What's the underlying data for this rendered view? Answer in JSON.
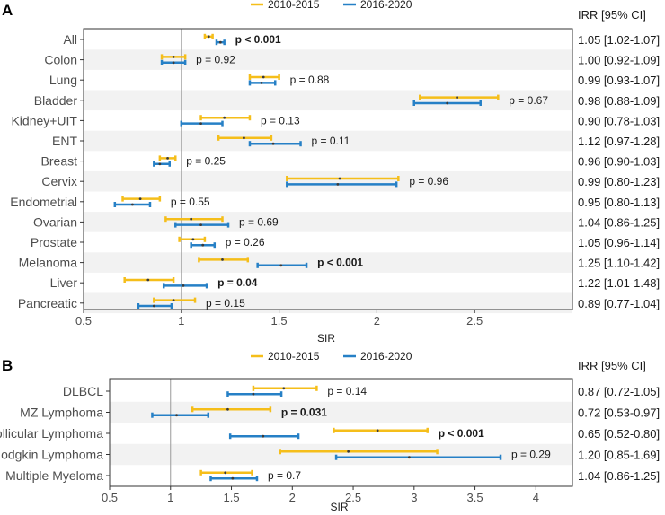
{
  "chart_data": [
    {
      "type": "forest",
      "panel_label": "A",
      "xlabel": "SIR",
      "xlim": [
        0.5,
        3.0
      ],
      "xticks": [
        0.5,
        1.0,
        1.5,
        2.0,
        2.5
      ],
      "reference_line": 1.0,
      "irr_header": "IRR [95% CI]",
      "legend": [
        {
          "name": "2010-2015",
          "color": "#F5BE1A"
        },
        {
          "name": "2016-2020",
          "color": "#2680C6"
        }
      ],
      "rows": [
        {
          "label": "All",
          "s1": [
            1.14,
            1.12,
            1.16
          ],
          "s2": [
            1.2,
            1.18,
            1.22
          ],
          "p": "p < 0.001",
          "bold": true,
          "irr": "1.05 [1.02-1.07]"
        },
        {
          "label": "Colon",
          "s1": [
            0.96,
            0.9,
            1.02
          ],
          "s2": [
            0.96,
            0.9,
            1.02
          ],
          "p": "p = 0.92",
          "bold": false,
          "irr": "1.00 [0.92-1.09]"
        },
        {
          "label": "Lung",
          "s1": [
            1.42,
            1.35,
            1.5
          ],
          "s2": [
            1.41,
            1.35,
            1.48
          ],
          "p": "p = 0.88",
          "bold": false,
          "irr": "0.99 [0.93-1.07]"
        },
        {
          "label": "Bladder",
          "s1": [
            2.41,
            2.22,
            2.62
          ],
          "s2": [
            2.36,
            2.19,
            2.53
          ],
          "p": "p = 0.67",
          "bold": false,
          "irr": "0.98 [0.88-1.09]"
        },
        {
          "label": "Kidney+UIT",
          "s1": [
            1.22,
            1.1,
            1.35
          ],
          "s2": [
            1.1,
            1.0,
            1.21
          ],
          "p": "p = 0.13",
          "bold": false,
          "irr": "0.90 [0.78-1.03]"
        },
        {
          "label": "ENT",
          "s1": [
            1.32,
            1.19,
            1.46
          ],
          "s2": [
            1.47,
            1.35,
            1.61
          ],
          "p": "p = 0.11",
          "bold": false,
          "irr": "1.12 [0.97-1.28]"
        },
        {
          "label": "Breast",
          "s1": [
            0.93,
            0.89,
            0.97
          ],
          "s2": [
            0.89,
            0.86,
            0.94
          ],
          "p": "p = 0.25",
          "bold": false,
          "irr": "0.96 [0.90-1.03]"
        },
        {
          "label": "Cervix",
          "s1": [
            1.81,
            1.54,
            2.11
          ],
          "s2": [
            1.8,
            1.54,
            2.1
          ],
          "p": "p = 0.96",
          "bold": false,
          "irr": "0.99 [0.80-1.23]"
        },
        {
          "label": "Endometrial",
          "s1": [
            0.79,
            0.7,
            0.89
          ],
          "s2": [
            0.75,
            0.66,
            0.84
          ],
          "p": "p = 0.55",
          "bold": false,
          "irr": "0.95 [0.80-1.13]"
        },
        {
          "label": "Ovarian",
          "s1": [
            1.05,
            0.92,
            1.21
          ],
          "s2": [
            1.1,
            0.97,
            1.24
          ],
          "p": "p = 0.69",
          "bold": false,
          "irr": "1.04 [0.86-1.25]"
        },
        {
          "label": "Prostate",
          "s1": [
            1.06,
            0.99,
            1.12
          ],
          "s2": [
            1.11,
            1.05,
            1.17
          ],
          "p": "p = 0.26",
          "bold": false,
          "irr": "1.05 [0.96-1.14]"
        },
        {
          "label": "Melanoma",
          "s1": [
            1.21,
            1.09,
            1.34
          ],
          "s2": [
            1.51,
            1.39,
            1.64
          ],
          "p": "p < 0.001",
          "bold": true,
          "irr": "1.25 [1.10-1.42]"
        },
        {
          "label": "Liver",
          "s1": [
            0.83,
            0.71,
            0.96
          ],
          "s2": [
            1.01,
            0.91,
            1.13
          ],
          "p": "p = 0.04",
          "bold": true,
          "irr": "1.22 [1.01-1.48]"
        },
        {
          "label": "Pancreatic",
          "s1": [
            0.96,
            0.86,
            1.07
          ],
          "s2": [
            0.86,
            0.78,
            0.95
          ],
          "p": "p = 0.15",
          "bold": false,
          "irr": "0.89 [0.77-1.04]"
        }
      ]
    },
    {
      "type": "forest",
      "panel_label": "B",
      "xlabel": "SIR",
      "xlim": [
        0.5,
        4.3
      ],
      "xticks": [
        0.5,
        1.0,
        1.5,
        2.0,
        2.5,
        3.0,
        3.5,
        4.0
      ],
      "reference_line": 1.0,
      "irr_header": "IRR [95% CI]",
      "legend": [
        {
          "name": "2010-2015",
          "color": "#F5BE1A"
        },
        {
          "name": "2016-2020",
          "color": "#2680C6"
        }
      ],
      "rows": [
        {
          "label": "DLBCL",
          "s1": [
            1.93,
            1.68,
            2.2
          ],
          "s2": [
            1.68,
            1.47,
            1.91
          ],
          "p": "p = 0.14",
          "bold": false,
          "irr": "0.87 [0.72-1.05]"
        },
        {
          "label": "MZ Lymphoma",
          "s1": [
            1.47,
            1.18,
            1.82
          ],
          "s2": [
            1.05,
            0.85,
            1.31
          ],
          "p": "p = 0.031",
          "bold": true,
          "irr": "0.72 [0.53-0.97]"
        },
        {
          "label": "Follicular Lymphoma",
          "s1": [
            2.7,
            2.34,
            3.11
          ],
          "s2": [
            1.76,
            1.49,
            2.05
          ],
          "p": "p < 0.001",
          "bold": true,
          "irr": "0.65 [0.52-0.80]"
        },
        {
          "label": "Hodgkin Lymphoma",
          "s1": [
            2.46,
            1.9,
            3.19
          ],
          "s2": [
            2.96,
            2.36,
            3.71
          ],
          "p": "p = 0.29",
          "bold": false,
          "irr": "1.20 [0.85-1.69]"
        },
        {
          "label": "Multiple Myeloma",
          "s1": [
            1.45,
            1.25,
            1.67
          ],
          "s2": [
            1.51,
            1.33,
            1.71
          ],
          "p": "p = 0.7",
          "bold": false,
          "irr": "1.04 [0.86-1.25]"
        }
      ]
    }
  ]
}
